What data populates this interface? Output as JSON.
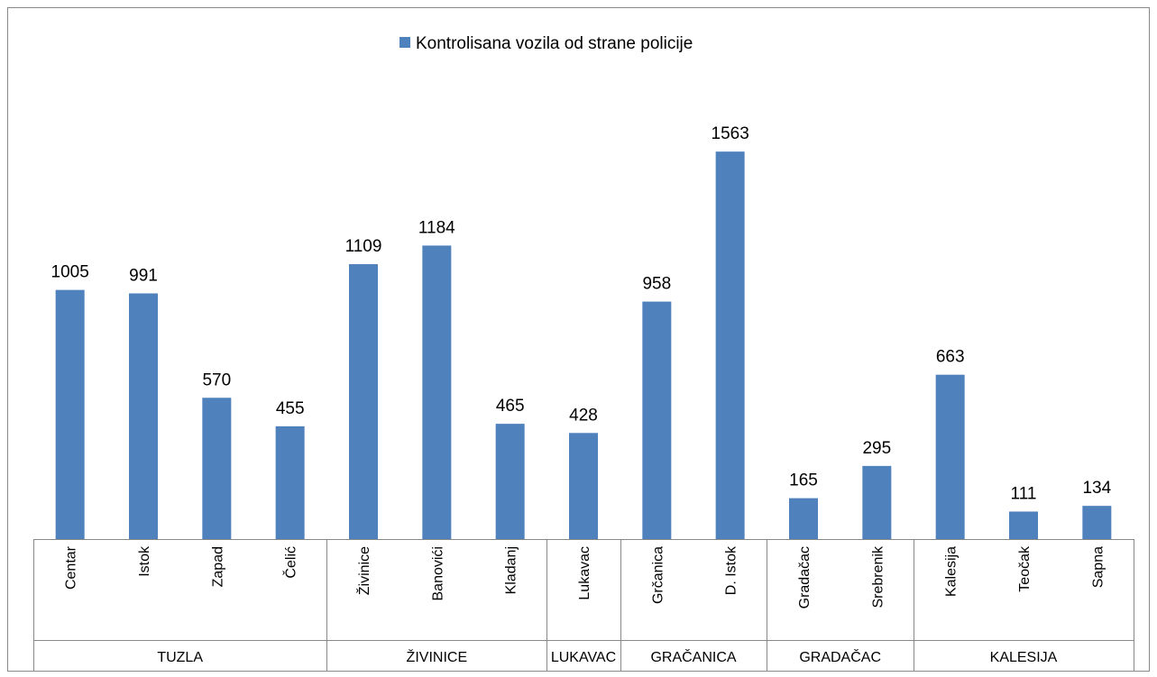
{
  "chart_data": {
    "type": "bar",
    "series": [
      {
        "name": "Kontrolisana vozila od strane policije",
        "color": "#4f81bd",
        "values": [
          1005,
          991,
          570,
          455,
          1109,
          1184,
          465,
          428,
          958,
          1563,
          165,
          295,
          663,
          111,
          134
        ]
      }
    ],
    "groups": [
      {
        "name": "TUZLA",
        "categories": [
          "Centar",
          "Istok",
          "Zapad",
          "Čelić"
        ]
      },
      {
        "name": "ŽIVINICE",
        "categories": [
          "Živinice",
          "Banovići",
          "Kladanj"
        ]
      },
      {
        "name": "LUKAVAC",
        "categories": [
          "Lukavac"
        ]
      },
      {
        "name": "GRAČANICA",
        "categories": [
          "Grčanica",
          "D. Istok"
        ]
      },
      {
        "name": "GRADAČAC",
        "categories": [
          "Gradačac",
          "Srebrenik"
        ]
      },
      {
        "name": "KALESIJA",
        "categories": [
          "Kalesija",
          "Teočak",
          "Sapna"
        ]
      }
    ],
    "ylim": [
      0,
      1800
    ],
    "grid": false,
    "legend": "top"
  }
}
